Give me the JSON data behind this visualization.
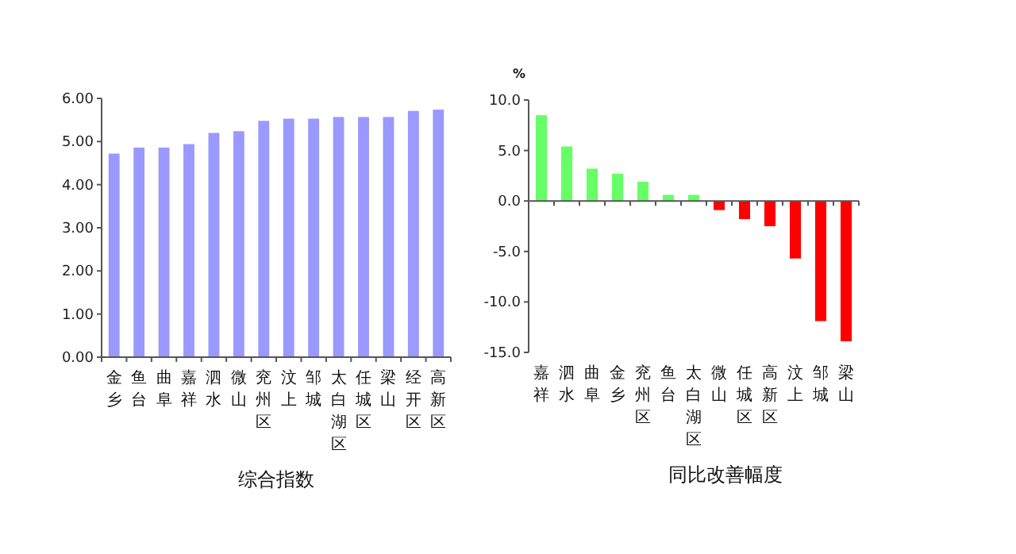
{
  "chart_data": [
    {
      "type": "bar",
      "xlabel": "综合指数",
      "categories": [
        "金乡",
        "鱼台",
        "曲阜",
        "嘉祥",
        "泗水",
        "微山",
        "兖州区",
        "汶上",
        "邹城",
        "太白湖区",
        "任城区",
        "梁山",
        "经开区",
        "高新区"
      ],
      "series": [
        {
          "color": "#9999ff",
          "values": [
            4.72,
            4.86,
            4.86,
            4.94,
            5.2,
            5.24,
            5.48,
            5.53,
            5.53,
            5.57,
            5.57,
            5.57,
            5.71,
            5.74
          ]
        }
      ],
      "ylim": [
        0,
        6
      ],
      "yticks": [
        {
          "value": 0,
          "label": "0.00"
        },
        {
          "value": 1,
          "label": "1.00"
        },
        {
          "value": 2,
          "label": "2.00"
        },
        {
          "value": 3,
          "label": "3.00"
        },
        {
          "value": 4,
          "label": "4.00"
        },
        {
          "value": 5,
          "label": "5.00"
        },
        {
          "value": 6,
          "label": "6.00"
        }
      ]
    },
    {
      "type": "bar",
      "xlabel": "同比改善幅度",
      "ylabel": "%",
      "categories": [
        "嘉祥",
        "泗水",
        "曲阜",
        "金乡",
        "兖州区",
        "鱼台",
        "太白湖区",
        "微山",
        "任城区",
        "高新区",
        "汶上",
        "邹城",
        "梁山"
      ],
      "series": [
        {
          "values": [
            8.5,
            5.4,
            3.2,
            2.7,
            1.9,
            0.6,
            0.6,
            -0.9,
            -1.8,
            -2.5,
            -5.7,
            -11.9,
            -13.9
          ],
          "colors": [
            "#66ff66",
            "#66ff66",
            "#66ff66",
            "#66ff66",
            "#66ff66",
            "#66ff66",
            "#66ff66",
            "#ff0000",
            "#ff0000",
            "#ff0000",
            "#ff0000",
            "#ff0000",
            "#ff0000"
          ]
        }
      ],
      "ylim": [
        -15,
        10
      ],
      "yticks": [
        {
          "value": -15,
          "label": "-15.0"
        },
        {
          "value": -10,
          "label": "-10.0"
        },
        {
          "value": -5,
          "label": "-5.0"
        },
        {
          "value": 0,
          "label": "0.0"
        },
        {
          "value": 5,
          "label": "5.0"
        },
        {
          "value": 10,
          "label": "10.0"
        }
      ]
    }
  ]
}
